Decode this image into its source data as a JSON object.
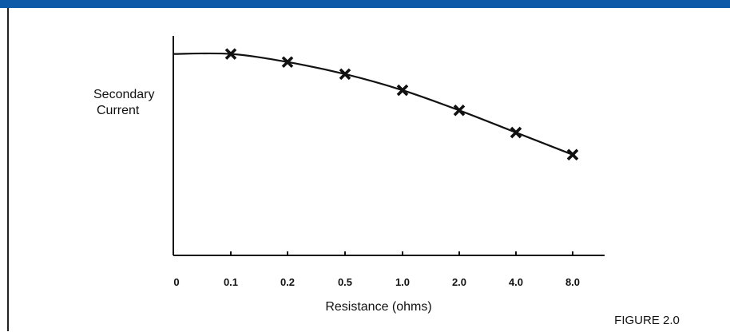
{
  "colors": {
    "band": "#0f5aa8",
    "ink": "#111111",
    "rule": "#222222"
  },
  "figure": {
    "caption": "FIGURE 2.0"
  },
  "chart_data": {
    "type": "line",
    "xlabel": "Resistance (ohms)",
    "ylabel_lines": [
      "Secondary",
      "Current"
    ],
    "categories": [
      "0",
      "0.1",
      "0.2",
      "0.5",
      "1.0",
      "2.0",
      "4.0",
      "8.0"
    ],
    "series": [
      {
        "marker": "x",
        "points": [
          {
            "x": "0.1",
            "y": 1.0
          },
          {
            "x": "0.2",
            "y": 0.96
          },
          {
            "x": "0.5",
            "y": 0.9
          },
          {
            "x": "1.0",
            "y": 0.82
          },
          {
            "x": "2.0",
            "y": 0.72
          },
          {
            "x": "4.0",
            "y": 0.61
          },
          {
            "x": "8.0",
            "y": 0.5
          }
        ],
        "curve_start": {
          "x": "0",
          "y": 1.0
        }
      }
    ],
    "ylim": [
      0,
      1.05
    ],
    "grid": false,
    "y_ticks_shown": false
  }
}
